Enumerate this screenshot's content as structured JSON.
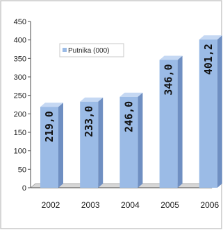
{
  "chart_data": {
    "type": "bar",
    "categories": [
      "2002",
      "2003",
      "2004",
      "2005",
      "2006"
    ],
    "series": [
      {
        "name": "Putnika (000)",
        "values": [
          219.0,
          233.0,
          246.0,
          346.0,
          401.2
        ]
      }
    ],
    "data_labels": [
      "219,0",
      "233,0",
      "246,0",
      "346,0",
      "401,2"
    ],
    "y_ticks": [
      "0",
      "50",
      "100",
      "150",
      "200",
      "250",
      "300",
      "350",
      "400",
      "450"
    ],
    "ylim": [
      0,
      450
    ],
    "grid": false,
    "legend_position": "top-left",
    "colors": {
      "bar_front": "#9bbbe6",
      "bar_side": "#6f8fc2",
      "bar_top": "#c5d8f3",
      "border": "#c8c8c8"
    }
  }
}
